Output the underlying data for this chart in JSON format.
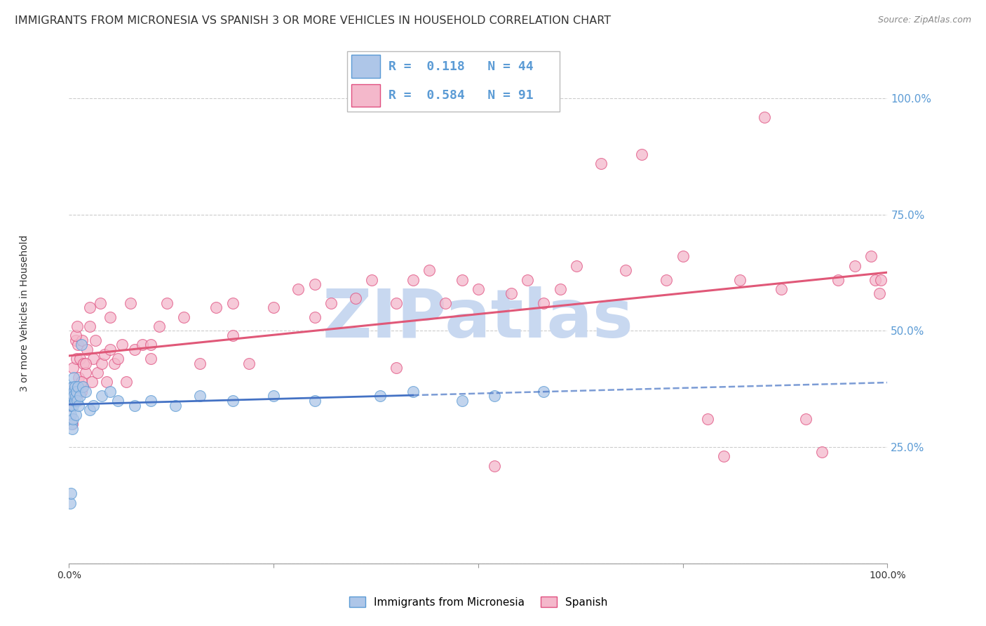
{
  "title": "IMMIGRANTS FROM MICRONESIA VS SPANISH 3 OR MORE VEHICLES IN HOUSEHOLD CORRELATION CHART",
  "source": "Source: ZipAtlas.com",
  "ylabel": "3 or more Vehicles in Household",
  "series1_name": "Immigrants from Micronesia",
  "series1_color": "#aec6e8",
  "series1_edge_color": "#5b9bd5",
  "series1_R": 0.118,
  "series1_N": 44,
  "series1_line_color": "#4472c4",
  "series2_name": "Spanish",
  "series2_color": "#f4b8cb",
  "series2_edge_color": "#e05080",
  "series2_R": 0.584,
  "series2_N": 91,
  "series2_line_color": "#e05878",
  "watermark_text": "ZIPatlas",
  "watermark_color": "#c8d8f0",
  "background_color": "#ffffff",
  "grid_color": "#cccccc",
  "title_fontsize": 11.5,
  "axis_label_fontsize": 10,
  "tick_fontsize": 10,
  "legend_fontsize": 13,
  "ytick_color": "#5b9bd5",
  "series1_x": [
    0.001,
    0.002,
    0.002,
    0.003,
    0.003,
    0.003,
    0.004,
    0.004,
    0.004,
    0.005,
    0.005,
    0.005,
    0.006,
    0.006,
    0.006,
    0.007,
    0.007,
    0.008,
    0.008,
    0.009,
    0.01,
    0.011,
    0.012,
    0.013,
    0.015,
    0.017,
    0.02,
    0.025,
    0.03,
    0.04,
    0.05,
    0.06,
    0.08,
    0.1,
    0.13,
    0.16,
    0.2,
    0.25,
    0.3,
    0.38,
    0.42,
    0.48,
    0.52,
    0.58
  ],
  "series1_y": [
    0.13,
    0.15,
    0.32,
    0.3,
    0.36,
    0.34,
    0.29,
    0.36,
    0.38,
    0.31,
    0.34,
    0.38,
    0.37,
    0.4,
    0.36,
    0.35,
    0.38,
    0.32,
    0.36,
    0.37,
    0.35,
    0.38,
    0.34,
    0.36,
    0.47,
    0.38,
    0.37,
    0.33,
    0.34,
    0.36,
    0.37,
    0.35,
    0.34,
    0.35,
    0.34,
    0.36,
    0.35,
    0.36,
    0.35,
    0.36,
    0.37,
    0.35,
    0.36,
    0.37
  ],
  "series2_x": [
    0.001,
    0.002,
    0.003,
    0.004,
    0.005,
    0.006,
    0.007,
    0.008,
    0.009,
    0.01,
    0.011,
    0.012,
    0.013,
    0.015,
    0.016,
    0.017,
    0.018,
    0.02,
    0.022,
    0.025,
    0.028,
    0.03,
    0.032,
    0.035,
    0.038,
    0.04,
    0.043,
    0.046,
    0.05,
    0.055,
    0.06,
    0.065,
    0.07,
    0.075,
    0.08,
    0.09,
    0.1,
    0.11,
    0.12,
    0.14,
    0.16,
    0.18,
    0.2,
    0.22,
    0.25,
    0.28,
    0.3,
    0.32,
    0.35,
    0.37,
    0.4,
    0.42,
    0.44,
    0.46,
    0.48,
    0.5,
    0.52,
    0.54,
    0.56,
    0.58,
    0.6,
    0.62,
    0.65,
    0.68,
    0.7,
    0.73,
    0.75,
    0.78,
    0.8,
    0.82,
    0.85,
    0.87,
    0.9,
    0.92,
    0.94,
    0.96,
    0.98,
    0.985,
    0.99,
    0.992,
    0.006,
    0.008,
    0.01,
    0.015,
    0.02,
    0.025,
    0.05,
    0.1,
    0.2,
    0.3,
    0.4
  ],
  "series2_y": [
    0.34,
    0.35,
    0.36,
    0.3,
    0.42,
    0.36,
    0.38,
    0.48,
    0.44,
    0.38,
    0.47,
    0.4,
    0.44,
    0.37,
    0.48,
    0.38,
    0.43,
    0.41,
    0.46,
    0.51,
    0.39,
    0.44,
    0.48,
    0.41,
    0.56,
    0.43,
    0.45,
    0.39,
    0.46,
    0.43,
    0.44,
    0.47,
    0.39,
    0.56,
    0.46,
    0.47,
    0.47,
    0.51,
    0.56,
    0.53,
    0.43,
    0.55,
    0.49,
    0.43,
    0.55,
    0.59,
    0.53,
    0.56,
    0.57,
    0.61,
    0.56,
    0.61,
    0.63,
    0.56,
    0.61,
    0.59,
    0.21,
    0.58,
    0.61,
    0.56,
    0.59,
    0.64,
    0.86,
    0.63,
    0.88,
    0.61,
    0.66,
    0.31,
    0.23,
    0.61,
    0.96,
    0.59,
    0.31,
    0.24,
    0.61,
    0.64,
    0.66,
    0.61,
    0.58,
    0.61,
    0.38,
    0.49,
    0.51,
    0.39,
    0.43,
    0.55,
    0.53,
    0.44,
    0.56,
    0.6,
    0.42
  ]
}
